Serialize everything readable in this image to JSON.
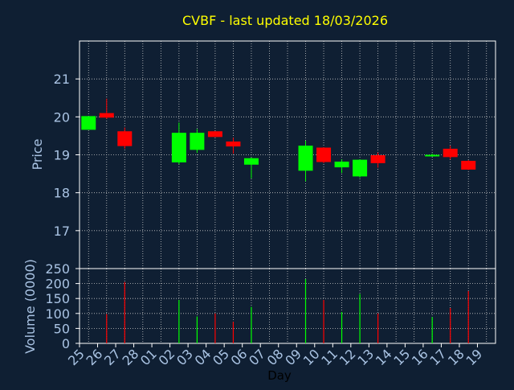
{
  "chart_data": {
    "type": "candlestick",
    "title": "CVBF - last updated 18/03/2026",
    "xlabel": "Day",
    "colors": {
      "background": "#0f1f33",
      "title": "#ffff00",
      "axis_text": "#a9c3e3",
      "up": "#00ff00",
      "down": "#ff0000",
      "grid": "#c8c8c8",
      "frame": "#ffffff"
    },
    "x_tick_labels": [
      "25",
      "26",
      "27",
      "28",
      "01",
      "02",
      "03",
      "04",
      "05",
      "06",
      "07",
      "08",
      "09",
      "10",
      "11",
      "12",
      "13",
      "14",
      "15",
      "16",
      "17",
      "18",
      "19"
    ],
    "price": {
      "ylabel": "Price",
      "ylim": [
        16,
        22
      ],
      "y_ticks": [
        "17",
        "18",
        "19",
        "20",
        "21"
      ],
      "y_tick_values": [
        17,
        18,
        19,
        20,
        21
      ],
      "candles": [
        {
          "x": "25",
          "open": 19.66,
          "high": 20.02,
          "low": 19.66,
          "close": 20.02
        },
        {
          "x": "26",
          "open": 20.1,
          "high": 20.48,
          "low": 19.95,
          "close": 19.98
        },
        {
          "x": "27",
          "open": 19.62,
          "high": 19.72,
          "low": 19.16,
          "close": 19.23
        },
        {
          "x": "02",
          "open": 18.8,
          "high": 19.85,
          "low": 18.75,
          "close": 19.58
        },
        {
          "x": "03",
          "open": 19.13,
          "high": 19.68,
          "low": 19.05,
          "close": 19.58
        },
        {
          "x": "04",
          "open": 19.62,
          "high": 19.62,
          "low": 19.47,
          "close": 19.47
        },
        {
          "x": "05",
          "open": 19.35,
          "high": 19.45,
          "low": 19.03,
          "close": 19.22
        },
        {
          "x": "06",
          "open": 18.74,
          "high": 18.93,
          "low": 18.38,
          "close": 18.91
        },
        {
          "x": "09",
          "open": 18.58,
          "high": 19.37,
          "low": 18.3,
          "close": 19.24
        },
        {
          "x": "10",
          "open": 19.19,
          "high": 19.2,
          "low": 18.78,
          "close": 18.81
        },
        {
          "x": "11",
          "open": 18.67,
          "high": 18.88,
          "low": 18.52,
          "close": 18.82
        },
        {
          "x": "12",
          "open": 18.43,
          "high": 18.88,
          "low": 18.4,
          "close": 18.87
        },
        {
          "x": "13",
          "open": 18.99,
          "high": 19.06,
          "low": 18.66,
          "close": 18.78
        },
        {
          "x": "16",
          "open": 18.97,
          "high": 19.03,
          "low": 18.95,
          "close": 19.0
        },
        {
          "x": "17",
          "open": 19.16,
          "high": 19.24,
          "low": 18.88,
          "close": 18.94
        },
        {
          "x": "18",
          "open": 18.84,
          "high": 18.86,
          "low": 18.6,
          "close": 18.61
        }
      ]
    },
    "volume": {
      "ylabel": "Volume (0000)",
      "ylim": [
        0,
        250
      ],
      "y_ticks": [
        "0",
        "50",
        "100",
        "150",
        "200",
        "250"
      ],
      "y_tick_values": [
        0,
        50,
        100,
        150,
        200,
        250
      ],
      "bars": [
        {
          "x": "26",
          "value": 98,
          "direction": "down"
        },
        {
          "x": "27",
          "value": 205,
          "direction": "down"
        },
        {
          "x": "02",
          "value": 145,
          "direction": "up"
        },
        {
          "x": "03",
          "value": 90,
          "direction": "up"
        },
        {
          "x": "04",
          "value": 100,
          "direction": "down"
        },
        {
          "x": "05",
          "value": 72,
          "direction": "down"
        },
        {
          "x": "06",
          "value": 122,
          "direction": "up"
        },
        {
          "x": "09",
          "value": 215,
          "direction": "up"
        },
        {
          "x": "10",
          "value": 145,
          "direction": "down"
        },
        {
          "x": "11",
          "value": 105,
          "direction": "up"
        },
        {
          "x": "12",
          "value": 165,
          "direction": "up"
        },
        {
          "x": "13",
          "value": 100,
          "direction": "down"
        },
        {
          "x": "16",
          "value": 88,
          "direction": "up"
        },
        {
          "x": "17",
          "value": 118,
          "direction": "down"
        },
        {
          "x": "18",
          "value": 175,
          "direction": "down"
        }
      ]
    }
  }
}
